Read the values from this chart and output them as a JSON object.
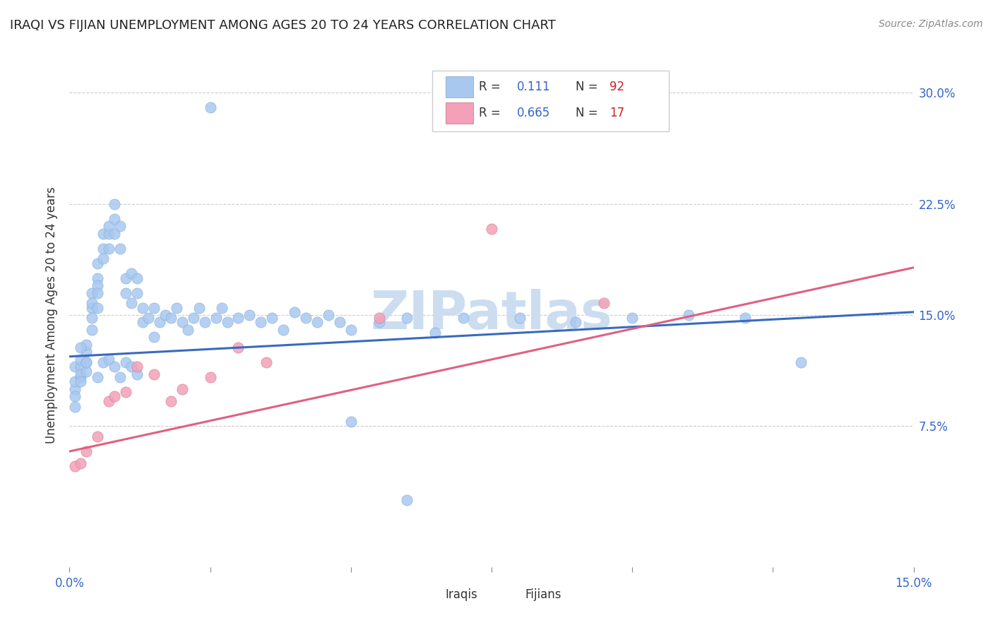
{
  "title": "IRAQI VS FIJIAN UNEMPLOYMENT AMONG AGES 20 TO 24 YEARS CORRELATION CHART",
  "source": "Source: ZipAtlas.com",
  "ylabel": "Unemployment Among Ages 20 to 24 years",
  "legend_iraqi_R": "0.111",
  "legend_iraqi_N": "92",
  "legend_fijian_R": "0.665",
  "legend_fijian_N": "17",
  "iraqi_color": "#a8c8f0",
  "fijian_color": "#f4a0b8",
  "trendline_iraqi_color": "#3a6abf",
  "trendline_fijian_color": "#e06080",
  "watermark_color": "#ccddf0",
  "background_color": "#ffffff",
  "xlim": [
    0.0,
    0.15
  ],
  "ylim": [
    -0.02,
    0.32
  ],
  "iraqi_x": [
    0.001,
    0.001,
    0.001,
    0.001,
    0.001,
    0.002,
    0.002,
    0.002,
    0.002,
    0.002,
    0.003,
    0.003,
    0.003,
    0.003,
    0.004,
    0.004,
    0.004,
    0.004,
    0.004,
    0.005,
    0.005,
    0.005,
    0.005,
    0.005,
    0.006,
    0.006,
    0.006,
    0.007,
    0.007,
    0.007,
    0.008,
    0.008,
    0.008,
    0.009,
    0.009,
    0.01,
    0.01,
    0.011,
    0.011,
    0.012,
    0.012,
    0.013,
    0.013,
    0.014,
    0.015,
    0.015,
    0.016,
    0.017,
    0.018,
    0.019,
    0.02,
    0.021,
    0.022,
    0.023,
    0.024,
    0.025,
    0.026,
    0.027,
    0.028,
    0.03,
    0.032,
    0.034,
    0.036,
    0.038,
    0.04,
    0.042,
    0.044,
    0.046,
    0.048,
    0.05,
    0.055,
    0.06,
    0.065,
    0.07,
    0.08,
    0.09,
    0.1,
    0.11,
    0.12,
    0.13,
    0.002,
    0.003,
    0.005,
    0.006,
    0.007,
    0.008,
    0.009,
    0.01,
    0.011,
    0.012,
    0.05,
    0.06
  ],
  "iraqi_y": [
    0.1,
    0.095,
    0.105,
    0.115,
    0.088,
    0.108,
    0.115,
    0.12,
    0.11,
    0.105,
    0.118,
    0.112,
    0.125,
    0.13,
    0.155,
    0.165,
    0.148,
    0.158,
    0.14,
    0.175,
    0.185,
    0.17,
    0.155,
    0.165,
    0.195,
    0.205,
    0.188,
    0.205,
    0.195,
    0.21,
    0.215,
    0.225,
    0.205,
    0.21,
    0.195,
    0.165,
    0.175,
    0.178,
    0.158,
    0.165,
    0.175,
    0.155,
    0.145,
    0.148,
    0.155,
    0.135,
    0.145,
    0.15,
    0.148,
    0.155,
    0.145,
    0.14,
    0.148,
    0.155,
    0.145,
    0.29,
    0.148,
    0.155,
    0.145,
    0.148,
    0.15,
    0.145,
    0.148,
    0.14,
    0.152,
    0.148,
    0.145,
    0.15,
    0.145,
    0.14,
    0.145,
    0.148,
    0.138,
    0.148,
    0.148,
    0.145,
    0.148,
    0.15,
    0.148,
    0.118,
    0.128,
    0.118,
    0.108,
    0.118,
    0.12,
    0.115,
    0.108,
    0.118,
    0.115,
    0.11,
    0.078,
    0.025
  ],
  "fijian_x": [
    0.001,
    0.002,
    0.003,
    0.005,
    0.007,
    0.008,
    0.01,
    0.012,
    0.015,
    0.018,
    0.02,
    0.025,
    0.03,
    0.035,
    0.055,
    0.075,
    0.095
  ],
  "fijian_y": [
    0.048,
    0.05,
    0.058,
    0.068,
    0.092,
    0.095,
    0.098,
    0.115,
    0.11,
    0.092,
    0.1,
    0.108,
    0.128,
    0.118,
    0.148,
    0.208,
    0.158
  ],
  "trendline_iraqi_x0": 0.0,
  "trendline_iraqi_x1": 0.15,
  "trendline_iraqi_y0": 0.122,
  "trendline_iraqi_y1": 0.152,
  "trendline_fijian_x0": 0.0,
  "trendline_fijian_x1": 0.15,
  "trendline_fijian_y0": 0.058,
  "trendline_fijian_y1": 0.182
}
